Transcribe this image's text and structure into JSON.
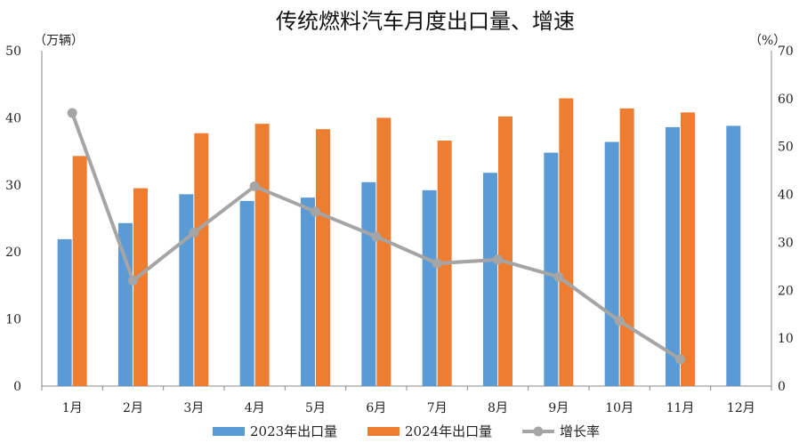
{
  "chart_data": {
    "type": "bar",
    "title": "传统燃料汽车月度出口量、增速",
    "y_left_unit": "（万辆）",
    "y_right_unit": "（%）",
    "categories": [
      "1月",
      "2月",
      "3月",
      "4月",
      "5月",
      "6月",
      "7月",
      "8月",
      "9月",
      "10月",
      "11月",
      "12月"
    ],
    "y_left_ticks": [
      "0",
      "10",
      "20",
      "30",
      "40",
      "50"
    ],
    "y_right_ticks": [
      "0",
      "10",
      "20",
      "30",
      "40",
      "50",
      "60",
      "70"
    ],
    "ylim_left": [
      0,
      50
    ],
    "ylim_right": [
      0,
      70
    ],
    "grid": false,
    "legend_position": "bottom",
    "series": [
      {
        "name": "2023年出口量",
        "kind": "bar",
        "axis": "left",
        "color": "#5B9BD5",
        "values": [
          21.9,
          24.3,
          28.6,
          27.6,
          28.1,
          30.4,
          29.2,
          31.8,
          34.8,
          36.4,
          38.6,
          38.8
        ]
      },
      {
        "name": "2024年出口量",
        "kind": "bar",
        "axis": "left",
        "color": "#ED7D31",
        "values": [
          34.3,
          29.5,
          37.7,
          39.1,
          38.3,
          40.0,
          36.6,
          40.2,
          42.9,
          41.4,
          40.8,
          null
        ]
      },
      {
        "name": "增长率",
        "kind": "line",
        "axis": "right",
        "color": "#A5A5A5",
        "values": [
          57.0,
          22.0,
          32.0,
          41.7,
          36.4,
          31.2,
          25.6,
          26.4,
          22.8,
          13.6,
          5.6,
          null
        ]
      }
    ]
  }
}
